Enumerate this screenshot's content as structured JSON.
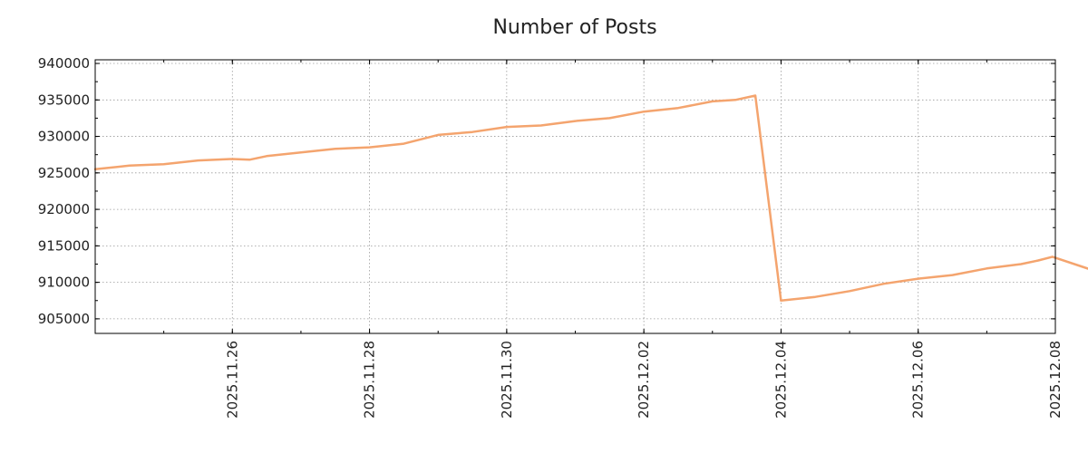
{
  "chart_data": {
    "type": "line",
    "title": "Number of Posts",
    "xlabel": "",
    "ylabel": "",
    "x_start": "2025.11.24",
    "x_end": "2025.12.08",
    "xlim": [
      "2025.11.24",
      "2025.12.08"
    ],
    "ylim": [
      903000,
      940500
    ],
    "y_ticks": [
      905000,
      910000,
      915000,
      920000,
      925000,
      930000,
      935000,
      940000
    ],
    "x_ticks": [
      "2025.11.26",
      "2025.11.28",
      "2025.11.30",
      "2025.12.02",
      "2025.12.04",
      "2025.12.06",
      "2025.12.08"
    ],
    "grid": true,
    "line_color": "#f4a46e",
    "series": [
      {
        "x": [
          "2025.11.24 00:00",
          "2025.11.24 12:00",
          "2025.11.25 00:00",
          "2025.11.25 12:00",
          "2025.11.26 00:00",
          "2025.11.26 06:00",
          "2025.11.26 12:00",
          "2025.11.27 00:00",
          "2025.11.27 12:00",
          "2025.11.28 00:00",
          "2025.11.28 12:00",
          "2025.11.29 00:00",
          "2025.11.29 12:00",
          "2025.11.30 00:00",
          "2025.11.30 12:00",
          "2025.12.01 00:00",
          "2025.12.01 12:00",
          "2025.12.02 00:00",
          "2025.12.02 12:00",
          "2025.12.03 00:00",
          "2025.12.03 08:00",
          "2025.12.03 15:00",
          "2025.12.04 00:00",
          "2025.12.04 12:00",
          "2025.12.05 00:00",
          "2025.12.05 12:00",
          "2025.12.06 00:00",
          "2025.12.06 12:00",
          "2025.12.07 00:00",
          "2025.12.07 12:00",
          "2025.12.07 18:00",
          "2025.12.07 23:00",
          "2025.12.08 12:00"
        ],
        "values": [
          925500,
          926000,
          926200,
          926700,
          926900,
          926800,
          927300,
          927800,
          928300,
          928500,
          929000,
          930200,
          930600,
          931300,
          931500,
          932100,
          932500,
          933400,
          933900,
          934800,
          935000,
          935600,
          907500,
          908000,
          908800,
          909800,
          910500,
          911000,
          911900,
          912500,
          913000,
          913500,
          911800
        ]
      }
    ]
  }
}
